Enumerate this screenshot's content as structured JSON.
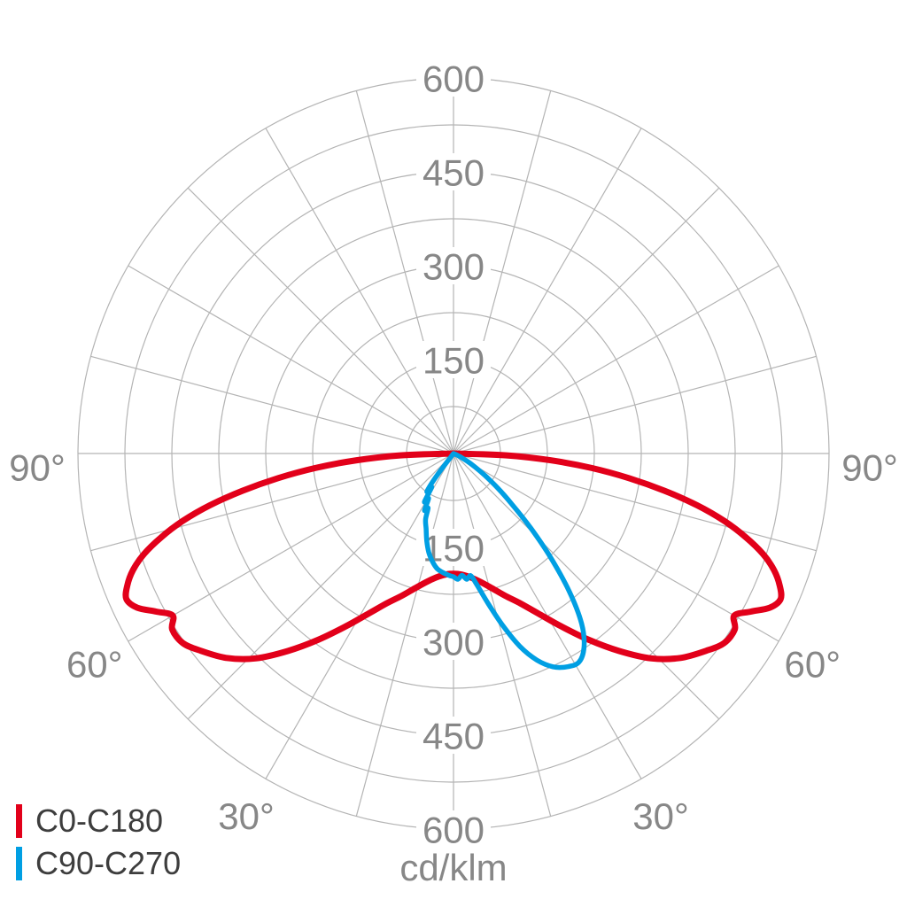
{
  "chart_data": {
    "type": "line",
    "coordinate_system": "polar",
    "variant": "photometric-light-distribution-curve",
    "units_label": "cd/klm",
    "grid_color": "#b4b4b4",
    "label_color": "#878787",
    "legend_text_color": "#3d3d3d",
    "background": "#ffffff",
    "radial_axis": {
      "min": 0,
      "max": 600,
      "circle_step": 75,
      "labeled_ticks": [
        150,
        300,
        450,
        600
      ]
    },
    "angular_axis": {
      "spoke_step_deg": 15,
      "zero_direction": "down (nadir)",
      "labels": [
        {
          "text": "90°",
          "angle_deg": -90
        },
        {
          "text": "60°",
          "angle_deg": -60
        },
        {
          "text": "30°",
          "angle_deg": -30
        },
        {
          "text": "30°",
          "angle_deg": 30
        },
        {
          "text": "60°",
          "angle_deg": 60
        },
        {
          "text": "90°",
          "angle_deg": 90
        }
      ]
    },
    "series": [
      {
        "name": "C0-C180",
        "color": "#e2001a",
        "stroke_width": 7,
        "points": [
          [
            -90,
            0
          ],
          [
            -88,
            85
          ],
          [
            -86,
            155
          ],
          [
            -84,
            222
          ],
          [
            -82,
            283
          ],
          [
            -80,
            342
          ],
          [
            -78,
            398
          ],
          [
            -76,
            446
          ],
          [
            -74,
            486
          ],
          [
            -72,
            520
          ],
          [
            -70,
            545
          ],
          [
            -68,
            562
          ],
          [
            -66,
            572
          ],
          [
            -64,
            562
          ],
          [
            -62,
            538
          ],
          [
            -60,
            518
          ],
          [
            -58,
            530
          ],
          [
            -55,
            528
          ],
          [
            -52,
            512
          ],
          [
            -48,
            488
          ],
          [
            -44,
            455
          ],
          [
            -40,
            412
          ],
          [
            -36,
            368
          ],
          [
            -32,
            326
          ],
          [
            -28,
            290
          ],
          [
            -24,
            262
          ],
          [
            -20,
            242
          ],
          [
            -16,
            224
          ],
          [
            -12,
            210
          ],
          [
            -8,
            200
          ],
          [
            -4,
            194
          ],
          [
            0,
            192
          ],
          [
            4,
            194
          ],
          [
            8,
            200
          ],
          [
            12,
            210
          ],
          [
            16,
            224
          ],
          [
            20,
            242
          ],
          [
            24,
            262
          ],
          [
            28,
            290
          ],
          [
            32,
            326
          ],
          [
            36,
            368
          ],
          [
            40,
            412
          ],
          [
            44,
            455
          ],
          [
            48,
            488
          ],
          [
            52,
            512
          ],
          [
            55,
            528
          ],
          [
            58,
            530
          ],
          [
            60,
            518
          ],
          [
            62,
            538
          ],
          [
            64,
            562
          ],
          [
            66,
            572
          ],
          [
            68,
            562
          ],
          [
            70,
            545
          ],
          [
            72,
            520
          ],
          [
            74,
            486
          ],
          [
            76,
            446
          ],
          [
            78,
            398
          ],
          [
            80,
            342
          ],
          [
            82,
            283
          ],
          [
            84,
            222
          ],
          [
            86,
            155
          ],
          [
            88,
            85
          ],
          [
            90,
            0
          ]
        ]
      },
      {
        "name": "C90-C270",
        "color": "#009fe3",
        "stroke_width": 5.5,
        "points": [
          [
            -40,
            0
          ],
          [
            -37,
            42
          ],
          [
            -35,
            74
          ],
          [
            -33,
            64
          ],
          [
            -31,
            90
          ],
          [
            -29,
            82
          ],
          [
            -27,
            102
          ],
          [
            -25,
            96
          ],
          [
            -23,
            114
          ],
          [
            -20,
            128
          ],
          [
            -17,
            146
          ],
          [
            -14,
            163
          ],
          [
            -11,
            176
          ],
          [
            -8,
            186
          ],
          [
            -5,
            191
          ],
          [
            -2,
            195
          ],
          [
            0,
            197
          ],
          [
            2,
            201
          ],
          [
            4,
            195
          ],
          [
            6,
            202
          ],
          [
            8,
            197
          ],
          [
            10,
            212
          ],
          [
            13,
            246
          ],
          [
            16,
            286
          ],
          [
            19,
            326
          ],
          [
            22,
            356
          ],
          [
            25,
            376
          ],
          [
            28,
            386
          ],
          [
            31,
            389
          ],
          [
            34,
            373
          ],
          [
            37,
            340
          ],
          [
            40,
            288
          ],
          [
            43,
            228
          ],
          [
            46,
            172
          ],
          [
            49,
            124
          ],
          [
            52,
            90
          ],
          [
            55,
            62
          ],
          [
            58,
            40
          ],
          [
            61,
            24
          ],
          [
            64,
            12
          ],
          [
            67,
            5
          ],
          [
            70,
            0
          ]
        ]
      }
    ],
    "legend": {
      "position": "bottom-left",
      "entries": [
        {
          "label": "C0-C180",
          "color": "#e2001a"
        },
        {
          "label": "C90-C270",
          "color": "#009fe3"
        }
      ]
    }
  }
}
